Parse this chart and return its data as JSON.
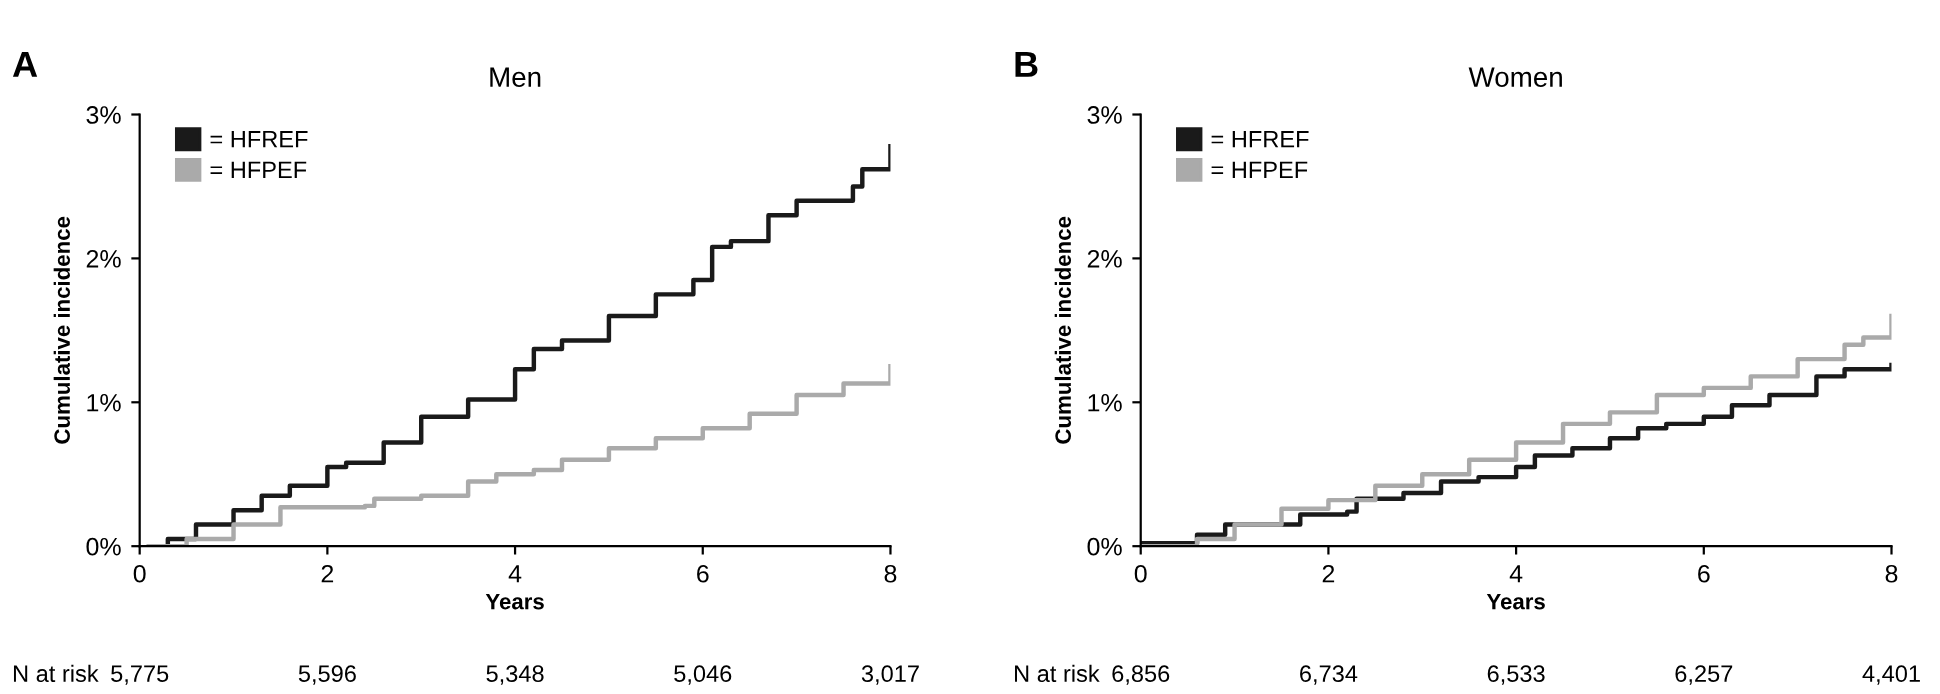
{
  "chart_data": [
    {
      "type": "step",
      "title": "Men",
      "xlabel": "Years",
      "ylabel": "Cumulative incidence",
      "annotations": [
        "A",
        "N at risk",
        "5,775",
        "5,596",
        "5,348",
        "5,046",
        "3,017"
      ],
      "xlim": [
        0,
        8
      ],
      "xticks": [
        0,
        2,
        4,
        6,
        8
      ],
      "ylim": [
        0,
        3
      ],
      "yticks": [
        {
          "value": 0,
          "label": "0%"
        },
        {
          "value": 1,
          "label": "1%"
        },
        {
          "value": 2,
          "label": "2%"
        },
        {
          "value": 3,
          "label": "3%"
        }
      ],
      "grid": false,
      "legend": "top left",
      "series": [
        {
          "name": "= HFREF",
          "color": "#1a1a1a",
          "x": [
            0.1,
            0.3,
            0.6,
            1.0,
            1.3,
            1.6,
            2.0,
            2.2,
            2.4,
            2.6,
            3.0,
            3.5,
            4.0,
            4.2,
            4.5,
            5.0,
            5.5,
            5.9,
            6.1,
            6.3,
            6.7,
            7.0,
            7.6,
            7.7,
            8.0
          ],
          "values": [
            0,
            0.05,
            0.15,
            0.25,
            0.35,
            0.42,
            0.55,
            0.58,
            0.58,
            0.72,
            0.9,
            1.02,
            1.23,
            1.37,
            1.43,
            1.6,
            1.75,
            1.85,
            2.08,
            2.12,
            2.3,
            2.4,
            2.5,
            2.62,
            2.78
          ]
        },
        {
          "name": "= HFPEF",
          "color": "#aaaaaa",
          "x": [
            0.1,
            0.5,
            1.0,
            1.5,
            2.0,
            2.4,
            2.5,
            3.0,
            3.5,
            3.8,
            4.2,
            4.5,
            5.0,
            5.5,
            6.0,
            6.5,
            7.0,
            7.5,
            8.0
          ],
          "values": [
            0,
            0.05,
            0.15,
            0.27,
            0.27,
            0.28,
            0.33,
            0.35,
            0.45,
            0.5,
            0.53,
            0.6,
            0.68,
            0.75,
            0.82,
            0.92,
            1.05,
            1.13,
            1.25
          ]
        }
      ]
    },
    {
      "type": "step",
      "title": "Women",
      "xlabel": "Years",
      "ylabel": "Cumulative incidence",
      "annotations": [
        "B",
        "N at risk",
        "6,856",
        "6,734",
        "6,533",
        "6,257",
        "4,401"
      ],
      "xlim": [
        0,
        8
      ],
      "xticks": [
        0,
        2,
        4,
        6,
        8
      ],
      "ylim": [
        0,
        3
      ],
      "yticks": [
        {
          "value": 0,
          "label": "0%"
        },
        {
          "value": 1,
          "label": "1%"
        },
        {
          "value": 2,
          "label": "2%"
        },
        {
          "value": 3,
          "label": "3%"
        }
      ],
      "grid": false,
      "legend": "top left",
      "series": [
        {
          "name": "= HFREF",
          "color": "#1a1a1a",
          "x": [
            0,
            0.6,
            0.9,
            1.7,
            2.2,
            2.3,
            2.8,
            3.2,
            3.6,
            4.0,
            4.2,
            4.6,
            5.0,
            5.3,
            5.6,
            6.0,
            6.3,
            6.7,
            7.2,
            7.5,
            8.0
          ],
          "values": [
            0.02,
            0.08,
            0.15,
            0.22,
            0.24,
            0.33,
            0.37,
            0.45,
            0.48,
            0.55,
            0.63,
            0.68,
            0.75,
            0.82,
            0.85,
            0.9,
            0.98,
            1.05,
            1.18,
            1.23,
            1.26
          ]
        },
        {
          "name": "= HFPEF",
          "color": "#aaaaaa",
          "x": [
            0,
            0.6,
            1.0,
            1.5,
            2.0,
            2.5,
            3.0,
            3.5,
            4.0,
            4.5,
            5.0,
            5.5,
            6.0,
            6.5,
            7.0,
            7.5,
            7.7,
            8.0
          ],
          "values": [
            0,
            0.05,
            0.15,
            0.26,
            0.32,
            0.42,
            0.5,
            0.6,
            0.72,
            0.85,
            0.93,
            1.05,
            1.1,
            1.18,
            1.3,
            1.4,
            1.45,
            1.6
          ]
        }
      ]
    }
  ]
}
